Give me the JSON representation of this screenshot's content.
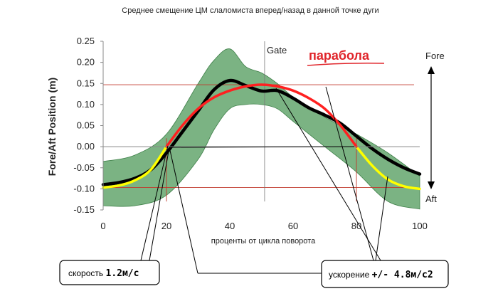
{
  "chart_data": {
    "type": "line",
    "title": "Среднее смещение ЦМ слаломиста вперед/назад в данной точке дуги",
    "xlabel": "проценты от цикла поворота",
    "ylabel": "Fore/Aft Position (m)",
    "xlim": [
      0,
      100
    ],
    "ylim": [
      -0.15,
      0.25
    ],
    "x_ticks": [
      "0",
      "20",
      "40",
      "60",
      "80",
      "100"
    ],
    "y_ticks": [
      "0.25",
      "0.20",
      "0.15",
      "0.10",
      "0.05",
      "0.00",
      "-0.05",
      "-0.10",
      "-0.15"
    ],
    "grid": false,
    "band": {
      "color": "#4f9a5a",
      "x": [
        0,
        10,
        20,
        30,
        35,
        40,
        45,
        50,
        55,
        60,
        70,
        80,
        90,
        100
      ],
      "upper": [
        -0.035,
        -0.02,
        0.03,
        0.15,
        0.205,
        0.232,
        0.19,
        0.175,
        0.15,
        0.118,
        0.07,
        0.03,
        -0.015,
        -0.07
      ],
      "lower": [
        -0.14,
        -0.14,
        -0.115,
        -0.03,
        0.04,
        0.09,
        0.1,
        0.1,
        0.09,
        0.06,
        0.0,
        -0.06,
        -0.13,
        -0.148
      ]
    },
    "series": [
      {
        "color": "#000000",
        "x": [
          0,
          5,
          10,
          15,
          20,
          25,
          30,
          35,
          40,
          45,
          50,
          55,
          60,
          65,
          70,
          75,
          80,
          85,
          90,
          95,
          100
        ],
        "values": [
          -0.09,
          -0.085,
          -0.075,
          -0.055,
          -0.015,
          0.035,
          0.085,
          0.135,
          0.157,
          0.145,
          0.132,
          0.133,
          0.115,
          0.092,
          0.075,
          0.055,
          0.025,
          -0.005,
          -0.03,
          -0.05,
          -0.065
        ]
      },
      {
        "color": "#ff2020",
        "x": [
          20,
          25,
          30,
          35,
          40,
          45,
          50,
          55,
          60,
          65,
          70,
          75,
          80
        ],
        "values": [
          0.0,
          0.05,
          0.09,
          0.117,
          0.133,
          0.143,
          0.147,
          0.143,
          0.133,
          0.115,
          0.09,
          0.05,
          0.0
        ]
      },
      {
        "color": "#ffff00",
        "x": [
          0,
          5,
          10,
          15,
          20
        ],
        "values": [
          -0.097,
          -0.092,
          -0.08,
          -0.055,
          0.0
        ]
      },
      {
        "color": "#ffff00",
        "x": [
          80,
          85,
          90,
          95,
          100
        ],
        "values": [
          0.0,
          -0.045,
          -0.078,
          -0.094,
          -0.1
        ]
      }
    ],
    "reference_lines": {
      "horizontal": [
        0.147,
        -0.097
      ],
      "vertical": [
        20,
        51,
        80
      ]
    },
    "annotations": {
      "gate": "Gate",
      "parabola": "парабола",
      "fore": "Fore",
      "aft": "Aft",
      "speed_box": {
        "prefix": "скорость ",
        "value": "1.2м/с"
      },
      "accel_box": {
        "prefix": "ускорение ",
        "value": "+/- 4.8м/с2"
      }
    }
  }
}
